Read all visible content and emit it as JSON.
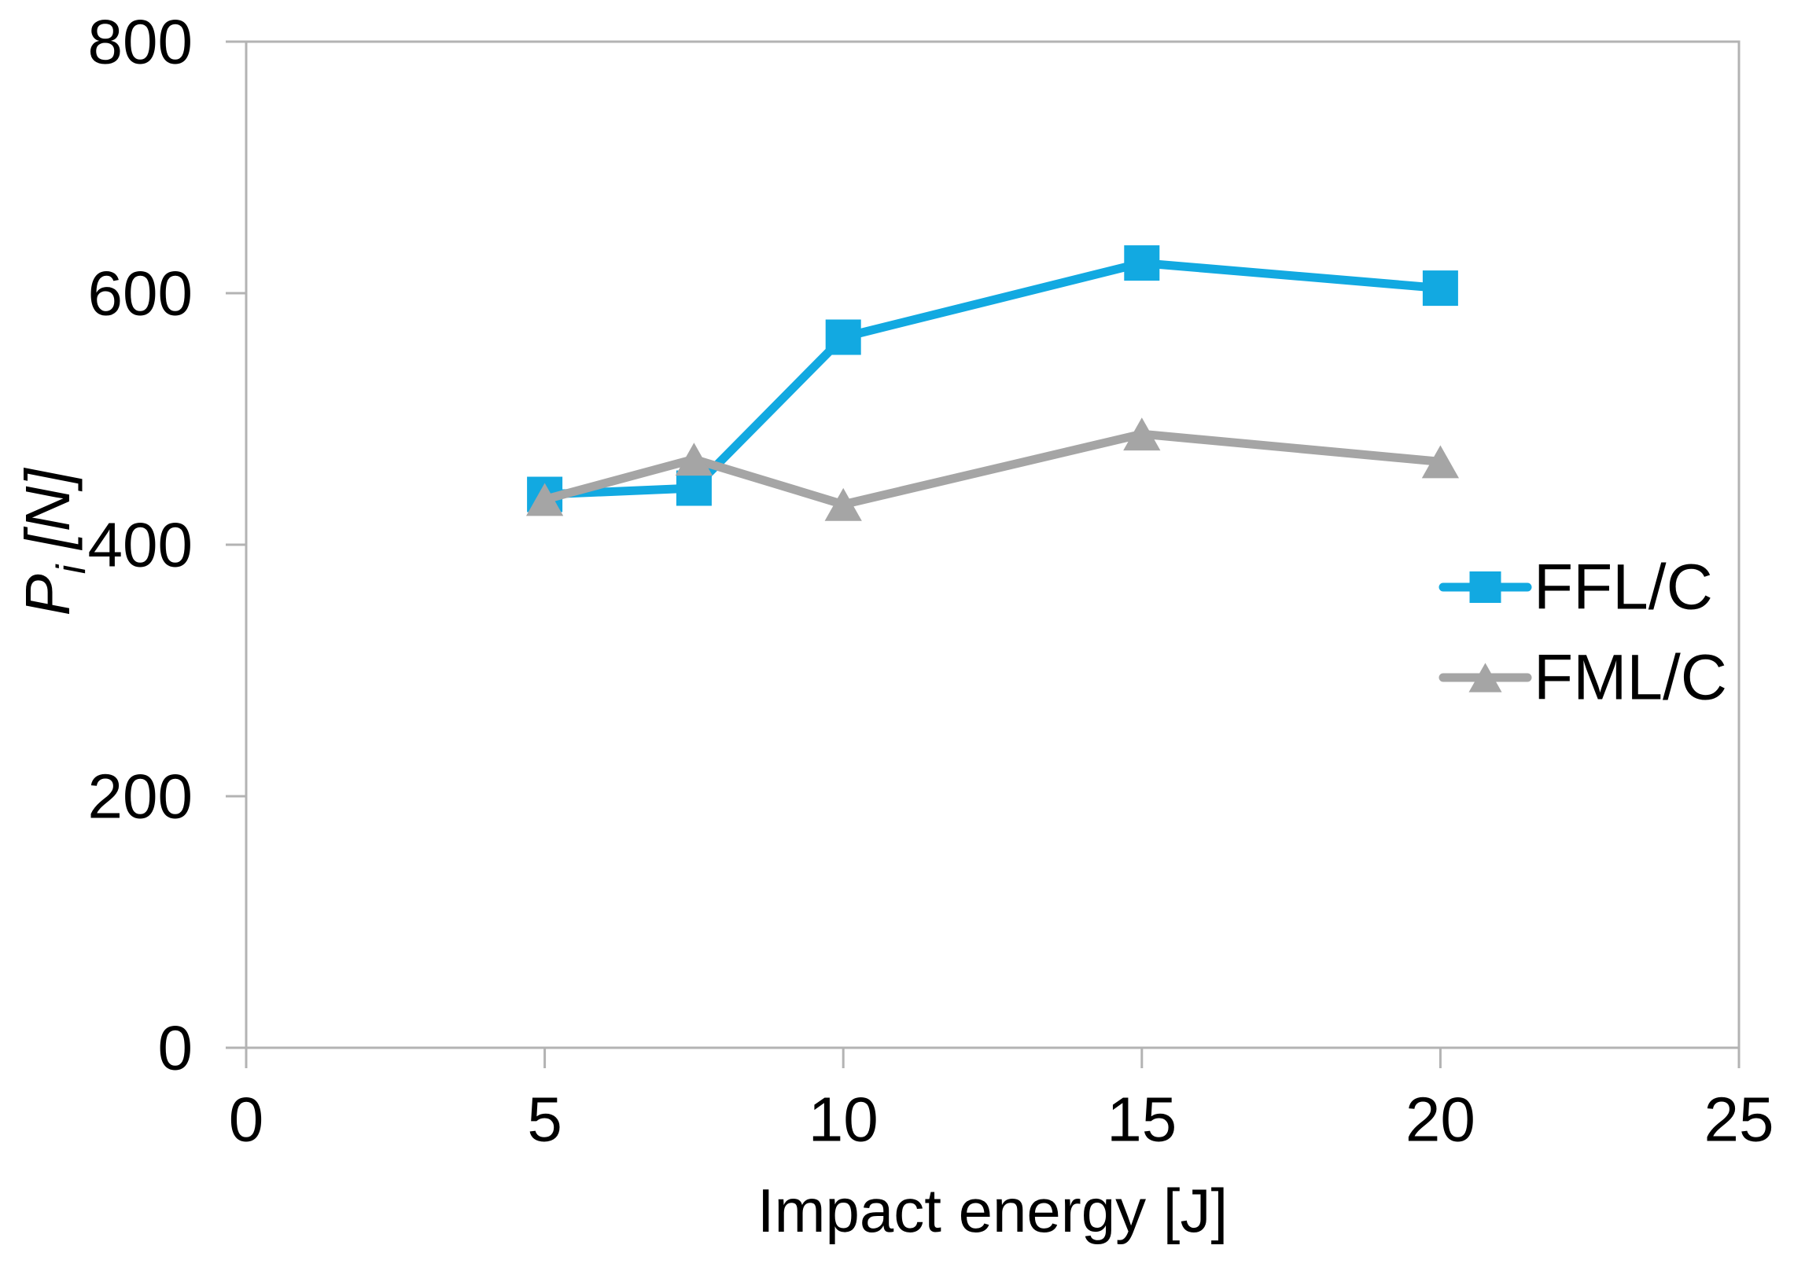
{
  "chart_data": {
    "type": "line",
    "title": "",
    "xlabel": "Impact energy [J]",
    "ylabel": "Pi [N]",
    "ylabel_parts": {
      "symbol": "P",
      "subscript": "i",
      "unit": "[N]"
    },
    "x": [
      5,
      7.5,
      10,
      15,
      20
    ],
    "series": [
      {
        "name": "FFL/C",
        "marker": "square",
        "color": "#12A9E1",
        "values": [
          440,
          445,
          565,
          624,
          604
        ]
      },
      {
        "name": "FML/C",
        "marker": "triangle",
        "color": "#A5A5A5",
        "values": [
          436,
          468,
          432,
          488,
          466
        ]
      }
    ],
    "xlim": [
      0,
      25
    ],
    "ylim": [
      0,
      800
    ],
    "x_ticks": [
      0,
      5,
      10,
      15,
      20,
      25
    ],
    "y_ticks": [
      0,
      200,
      400,
      600,
      800
    ],
    "grid": false,
    "legend": {
      "position": "right-middle",
      "entries": [
        "FFL/C",
        "FML/C"
      ]
    }
  },
  "styles": {
    "background": "#FFFFFF",
    "axis_color": "#B3B3B3",
    "text_color": "#000000",
    "accent_blue": "#12A9E1",
    "series_gray": "#A5A5A5"
  }
}
